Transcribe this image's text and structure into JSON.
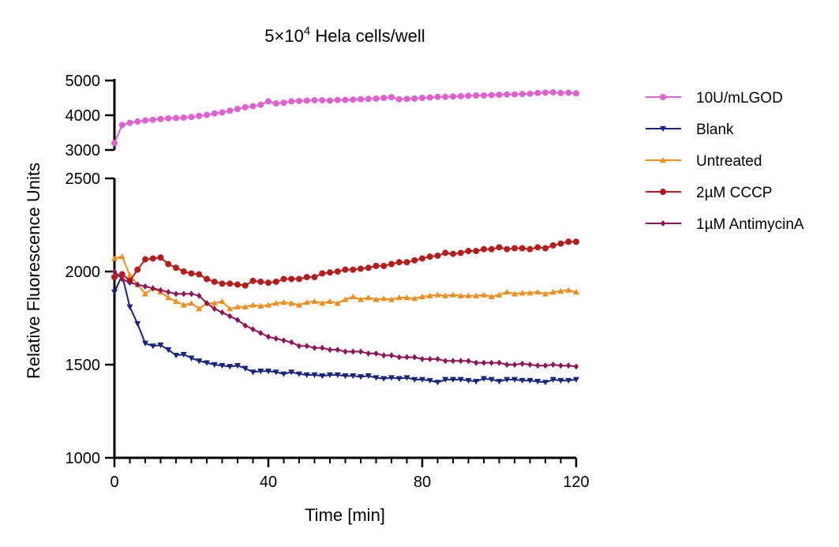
{
  "chart_data": {
    "type": "line",
    "title_main": "5×10",
    "title_sup": "4",
    "title_rest": " Hela cells/well",
    "xlabel": "Time [min]",
    "ylabel": "Relative Fluorescence Units",
    "xlim": [
      0,
      120
    ],
    "x_ticks": [
      "0",
      "40",
      "80",
      "120"
    ],
    "y_axis_break": true,
    "y_lower_range": [
      1000,
      2500
    ],
    "y_upper_range": [
      3000,
      5000
    ],
    "y_lower_ticks": [
      "1000",
      "1500",
      "2000",
      "2500"
    ],
    "y_upper_ticks": [
      "3000",
      "4000",
      "5000"
    ],
    "grid": false,
    "legend_position": "right",
    "series": [
      {
        "name": "10U/mLGOD",
        "color": "#e060d0",
        "marker": "circle",
        "x": [
          0,
          2,
          4,
          6,
          8,
          10,
          12,
          14,
          16,
          18,
          20,
          22,
          24,
          26,
          28,
          30,
          32,
          34,
          36,
          38,
          40,
          42,
          44,
          46,
          48,
          50,
          52,
          54,
          56,
          58,
          60,
          62,
          64,
          66,
          68,
          70,
          72,
          74,
          76,
          78,
          80,
          82,
          84,
          86,
          88,
          90,
          92,
          94,
          96,
          98,
          100,
          102,
          104,
          106,
          108,
          110,
          112,
          114,
          116,
          118,
          120
        ],
        "y": [
          3200,
          3720,
          3780,
          3820,
          3850,
          3870,
          3890,
          3910,
          3920,
          3930,
          3950,
          3980,
          4010,
          4050,
          4080,
          4130,
          4180,
          4230,
          4260,
          4300,
          4400,
          4340,
          4360,
          4400,
          4410,
          4420,
          4430,
          4430,
          4420,
          4440,
          4440,
          4450,
          4460,
          4470,
          4480,
          4500,
          4520,
          4460,
          4470,
          4480,
          4500,
          4510,
          4530,
          4530,
          4540,
          4550,
          4560,
          4570,
          4570,
          4580,
          4590,
          4600,
          4600,
          4610,
          4620,
          4640,
          4650,
          4660,
          4640,
          4650,
          4630
        ]
      },
      {
        "name": "Blank",
        "color": "#1a237e",
        "marker": "triangle-down",
        "x": [
          0,
          2,
          4,
          6,
          8,
          10,
          12,
          14,
          16,
          18,
          20,
          22,
          24,
          26,
          28,
          30,
          32,
          34,
          36,
          38,
          40,
          42,
          44,
          46,
          48,
          50,
          52,
          54,
          56,
          58,
          60,
          62,
          64,
          66,
          68,
          70,
          72,
          74,
          76,
          78,
          80,
          82,
          84,
          86,
          88,
          90,
          92,
          94,
          96,
          98,
          100,
          102,
          104,
          106,
          108,
          110,
          112,
          114,
          116,
          118,
          120
        ],
        "y": [
          1890,
          1980,
          1810,
          1720,
          1615,
          1600,
          1605,
          1580,
          1550,
          1555,
          1535,
          1520,
          1510,
          1500,
          1495,
          1490,
          1495,
          1480,
          1460,
          1465,
          1465,
          1460,
          1450,
          1460,
          1450,
          1445,
          1445,
          1440,
          1445,
          1445,
          1440,
          1440,
          1435,
          1440,
          1430,
          1425,
          1430,
          1425,
          1430,
          1420,
          1420,
          1415,
          1405,
          1420,
          1420,
          1420,
          1415,
          1410,
          1425,
          1420,
          1410,
          1420,
          1420,
          1415,
          1415,
          1410,
          1405,
          1420,
          1415,
          1415,
          1420
        ]
      },
      {
        "name": "Untreated",
        "color": "#f28c1b",
        "marker": "triangle-up",
        "x": [
          0,
          2,
          4,
          6,
          8,
          10,
          12,
          14,
          16,
          18,
          20,
          22,
          24,
          26,
          28,
          30,
          32,
          34,
          36,
          38,
          40,
          42,
          44,
          46,
          48,
          50,
          52,
          54,
          56,
          58,
          60,
          62,
          64,
          66,
          68,
          70,
          72,
          74,
          76,
          78,
          80,
          82,
          84,
          86,
          88,
          90,
          92,
          94,
          96,
          98,
          100,
          102,
          104,
          106,
          108,
          110,
          112,
          114,
          116,
          118,
          120
        ],
        "y": [
          2070,
          2080,
          1980,
          1930,
          1880,
          1910,
          1890,
          1860,
          1840,
          1820,
          1830,
          1800,
          1830,
          1830,
          1840,
          1800,
          1810,
          1810,
          1820,
          1815,
          1820,
          1830,
          1835,
          1830,
          1820,
          1835,
          1840,
          1830,
          1840,
          1830,
          1850,
          1865,
          1850,
          1860,
          1850,
          1855,
          1850,
          1860,
          1860,
          1855,
          1865,
          1870,
          1875,
          1870,
          1875,
          1870,
          1870,
          1870,
          1875,
          1865,
          1875,
          1890,
          1880,
          1885,
          1885,
          1890,
          1880,
          1890,
          1895,
          1900,
          1890
        ]
      },
      {
        "name": "2µM CCCP",
        "color": "#b71c1c",
        "marker": "circle",
        "x": [
          0,
          2,
          4,
          6,
          8,
          10,
          12,
          14,
          16,
          18,
          20,
          22,
          24,
          26,
          28,
          30,
          32,
          34,
          36,
          38,
          40,
          42,
          44,
          46,
          48,
          50,
          52,
          54,
          56,
          58,
          60,
          62,
          64,
          66,
          68,
          70,
          72,
          74,
          76,
          78,
          80,
          82,
          84,
          86,
          88,
          90,
          92,
          94,
          96,
          98,
          100,
          102,
          104,
          106,
          108,
          110,
          112,
          114,
          116,
          118,
          120
        ],
        "y": [
          1970,
          1985,
          1950,
          2010,
          2065,
          2070,
          2075,
          2040,
          2020,
          2000,
          1990,
          1985,
          1960,
          1945,
          1935,
          1935,
          1930,
          1925,
          1950,
          1945,
          1940,
          1945,
          1960,
          1960,
          1960,
          1970,
          1970,
          1990,
          1995,
          2000,
          2010,
          2010,
          2015,
          2020,
          2030,
          2030,
          2040,
          2050,
          2050,
          2060,
          2070,
          2080,
          2085,
          2100,
          2095,
          2100,
          2110,
          2110,
          2120,
          2120,
          2130,
          2120,
          2125,
          2125,
          2120,
          2130,
          2125,
          2140,
          2150,
          2160,
          2160
        ]
      },
      {
        "name": "1µM AntimycinA",
        "color": "#8e1457",
        "marker": "diamond",
        "x": [
          0,
          2,
          4,
          6,
          8,
          10,
          12,
          14,
          16,
          18,
          20,
          22,
          24,
          26,
          28,
          30,
          32,
          34,
          36,
          38,
          40,
          42,
          44,
          46,
          48,
          50,
          52,
          54,
          56,
          58,
          60,
          62,
          64,
          66,
          68,
          70,
          72,
          74,
          76,
          78,
          80,
          82,
          84,
          86,
          88,
          90,
          92,
          94,
          96,
          98,
          100,
          102,
          104,
          106,
          108,
          110,
          112,
          114,
          116,
          118,
          120
        ],
        "y": [
          2000,
          1960,
          1940,
          1930,
          1920,
          1910,
          1900,
          1890,
          1880,
          1880,
          1880,
          1870,
          1830,
          1800,
          1780,
          1760,
          1740,
          1710,
          1690,
          1670,
          1650,
          1640,
          1630,
          1620,
          1600,
          1600,
          1590,
          1590,
          1580,
          1580,
          1570,
          1570,
          1570,
          1560,
          1560,
          1550,
          1550,
          1540,
          1540,
          1540,
          1530,
          1530,
          1530,
          1520,
          1520,
          1520,
          1520,
          1510,
          1510,
          1510,
          1510,
          1500,
          1500,
          1505,
          1500,
          1495,
          1495,
          1500,
          1495,
          1495,
          1490
        ]
      }
    ]
  }
}
